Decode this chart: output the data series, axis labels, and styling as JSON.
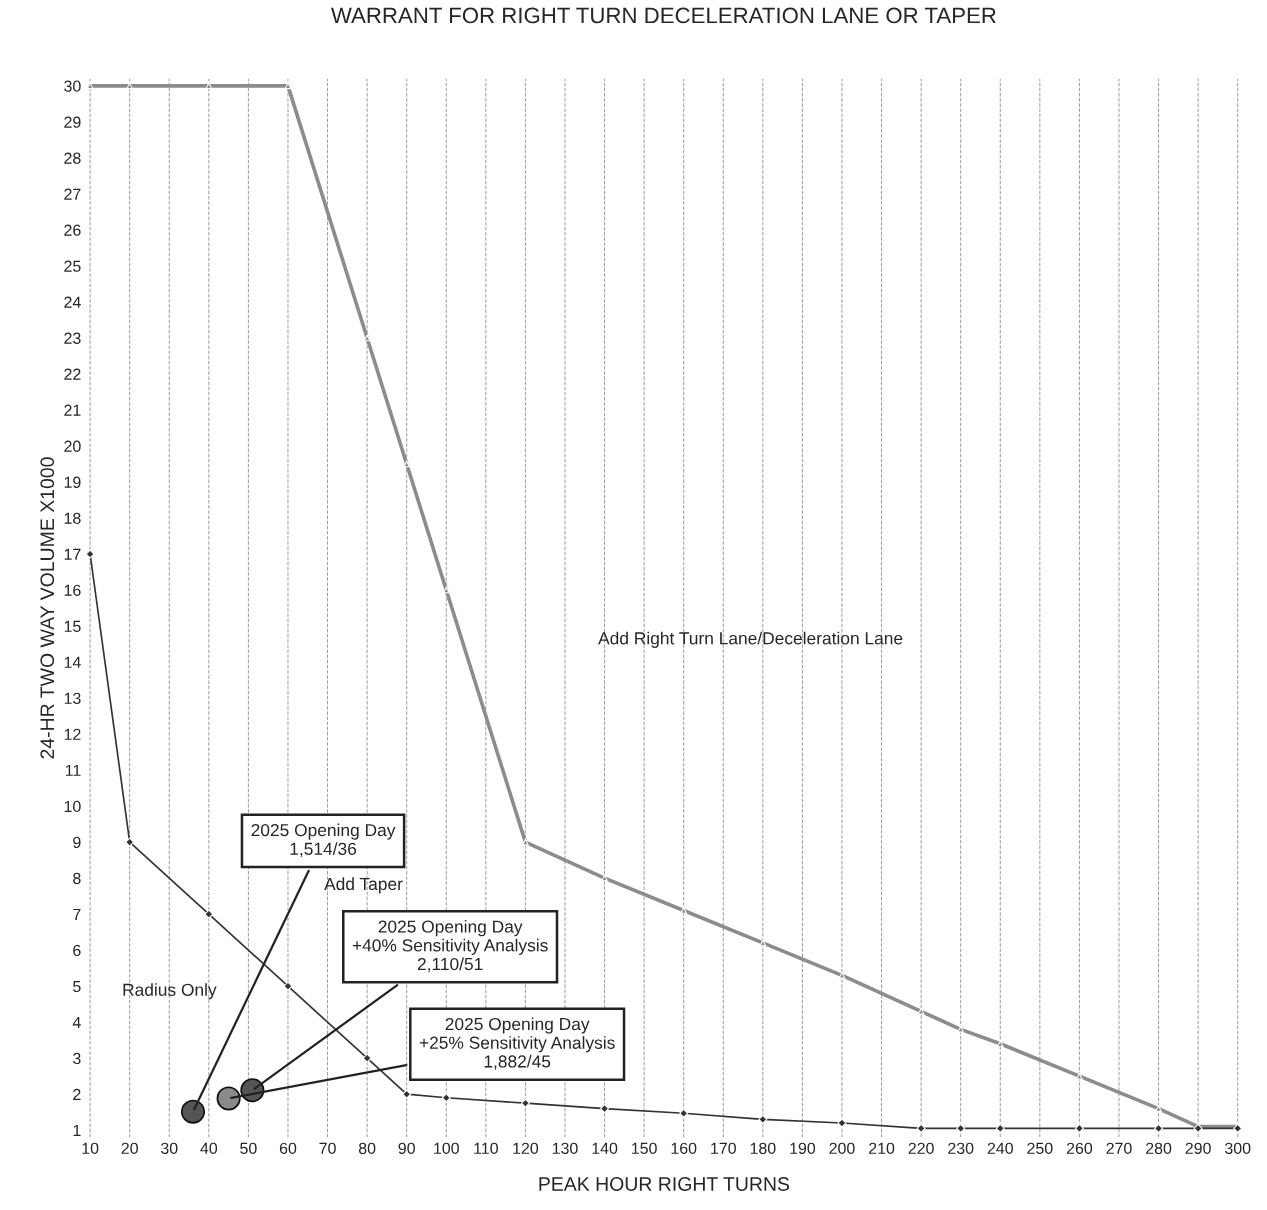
{
  "chart_data": {
    "type": "line",
    "title": "WARRANT FOR RIGHT TURN DECELERATION LANE OR TAPER",
    "xlabel": "PEAK HOUR RIGHT TURNS",
    "ylabel": "24-HR TWO WAY VOLUME X1000",
    "xlim": [
      9,
      301
    ],
    "ylim": [
      0.8,
      30.2
    ],
    "xticks": [
      10,
      20,
      30,
      40,
      50,
      60,
      70,
      80,
      90,
      100,
      110,
      120,
      130,
      140,
      150,
      160,
      170,
      180,
      190,
      200,
      210,
      220,
      230,
      240,
      250,
      260,
      270,
      280,
      290,
      300
    ],
    "yticks": [
      1,
      2,
      3,
      4,
      5,
      6,
      7,
      8,
      9,
      10,
      11,
      12,
      13,
      14,
      15,
      16,
      17,
      18,
      19,
      20,
      21,
      22,
      23,
      24,
      25,
      26,
      27,
      28,
      29,
      30
    ],
    "grid": "x",
    "legend": false,
    "series": [
      {
        "color": "#8c8c8c",
        "marker": "triangle",
        "x": [
          10,
          20,
          40,
          60,
          80,
          90,
          100,
          120,
          140,
          160,
          180,
          200,
          220,
          230,
          240,
          260,
          280,
          290,
          300
        ],
        "values": [
          30,
          30,
          30,
          30,
          23,
          19.5,
          16,
          9,
          8,
          7.1,
          6.2,
          5.3,
          4.3,
          3.8,
          3.4,
          2.5,
          1.6,
          1.1,
          1.1
        ]
      },
      {
        "color": "#333333",
        "marker": "diamond",
        "x": [
          10,
          20,
          40,
          60,
          80,
          90,
          100,
          120,
          140,
          160,
          180,
          200,
          220,
          230,
          240,
          260,
          280,
          290,
          300
        ],
        "values": [
          17,
          9,
          7,
          5,
          3,
          2,
          1.9,
          1.75,
          1.6,
          1.47,
          1.3,
          1.2,
          1.05,
          1.05,
          1.05,
          1.05,
          1.05,
          1.05,
          1.05
        ]
      },
      {
        "type": "scatter",
        "colors": [
          "#555555",
          "#8a8a8a",
          "#555555"
        ],
        "marker": "circle",
        "x": [
          36,
          45,
          51
        ],
        "values": [
          1.514,
          1.882,
          2.11
        ]
      }
    ],
    "annotations": [
      {
        "text": "2025 Opening Day\n1,514/36",
        "x": 36,
        "y": 1.514
      },
      {
        "text": "2025 Opening Day\n+40% Sensitivity Analysis\n2,110/51",
        "x": 51,
        "y": 2.11
      },
      {
        "text": "2025 Opening Day\n+25% Sensitivity Analysis\n1,882/45",
        "x": 45,
        "y": 1.882
      },
      "Add Right Turn Lane/Deceleration Lane",
      "Add Taper",
      "Radius Only"
    ]
  }
}
